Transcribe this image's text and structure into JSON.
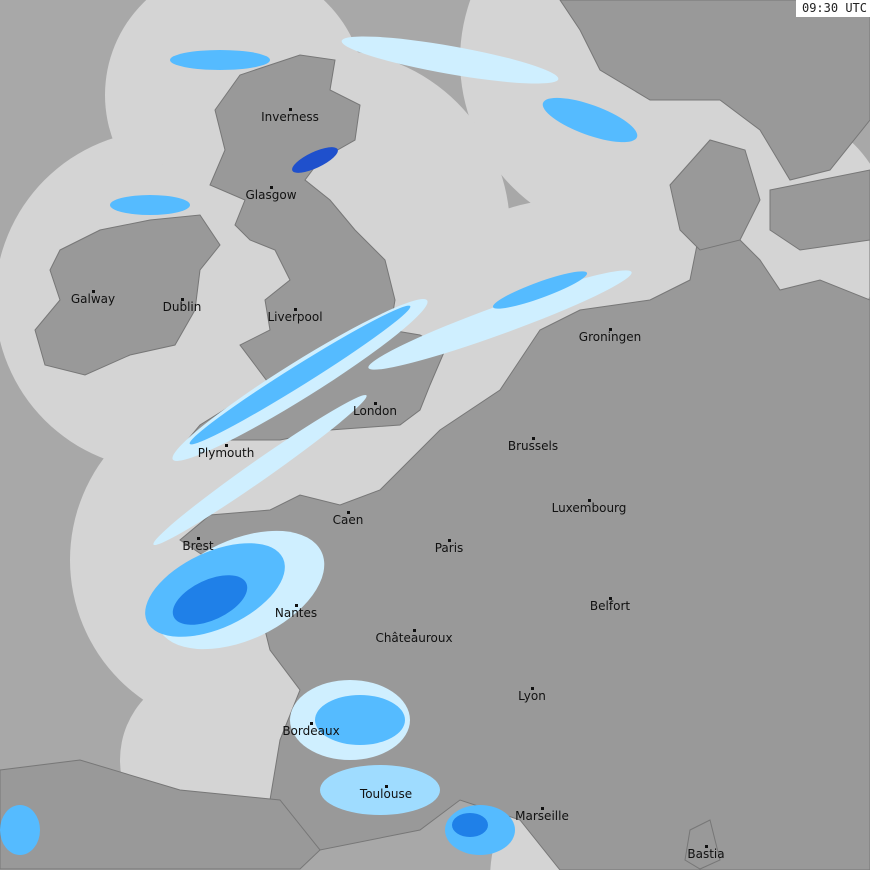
{
  "timestamp": "09:30 UTC",
  "colors": {
    "sea_outside": "#a8a8a8",
    "sea_coverage": "#d4d4d4",
    "land": "#999999",
    "rain_light": "#cfefff",
    "rain_mid": "#55bbff",
    "rain_heavy": "#1166dd"
  },
  "cities": [
    {
      "name": "Inverness"
    },
    {
      "name": "Glasgow"
    },
    {
      "name": "Galway"
    },
    {
      "name": "Dublin"
    },
    {
      "name": "Liverpool"
    },
    {
      "name": "Groningen"
    },
    {
      "name": "London"
    },
    {
      "name": "Brussels"
    },
    {
      "name": "Plymouth"
    },
    {
      "name": "Luxembourg"
    },
    {
      "name": "Caen"
    },
    {
      "name": "Brest"
    },
    {
      "name": "Paris"
    },
    {
      "name": "Belfort"
    },
    {
      "name": "Nantes"
    },
    {
      "name": "Châteauroux"
    },
    {
      "name": "Lyon"
    },
    {
      "name": "Bordeaux"
    },
    {
      "name": "Toulouse"
    },
    {
      "name": "Marseille"
    },
    {
      "name": "Bastia"
    }
  ]
}
